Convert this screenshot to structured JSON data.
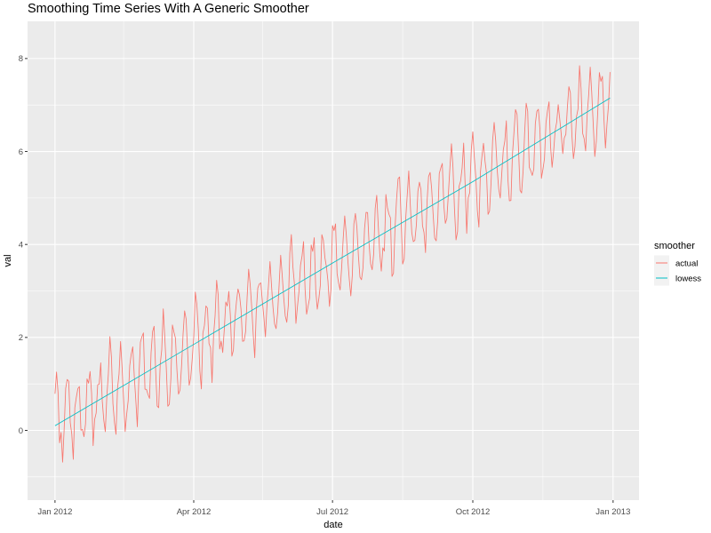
{
  "chart_data": {
    "type": "line",
    "title": "Smoothing Time Series With A Generic Smoother",
    "xlabel": "date",
    "ylabel": "val",
    "x_axis_type": "date",
    "xlim": [
      "2011-12-14",
      "2013-01-18"
    ],
    "ylim": [
      -1.5,
      8.8
    ],
    "x_ticks": [
      {
        "date": "2012-01-01",
        "label": "Jan 2012"
      },
      {
        "date": "2012-04-01",
        "label": "Apr 2012"
      },
      {
        "date": "2012-07-01",
        "label": "Jul 2012"
      },
      {
        "date": "2012-10-01",
        "label": "Oct 2012"
      },
      {
        "date": "2013-01-01",
        "label": "Jan 2013"
      }
    ],
    "x_minor_ticks": [
      "2012-02-15",
      "2012-05-16",
      "2012-08-16",
      "2012-11-16"
    ],
    "y_ticks": [
      0,
      2,
      4,
      6,
      8
    ],
    "y_minor_ticks": [
      -1,
      1,
      3,
      5,
      7
    ],
    "grid": true,
    "background": "#ebebeb",
    "legend": {
      "title": "smoother",
      "placement": "right",
      "entries": [
        "actual",
        "lowess"
      ]
    },
    "series": [
      {
        "name": "actual",
        "color": "#f8766d",
        "generator": {
          "start": "2012-01-01",
          "end": "2012-12-30",
          "step_days": 1,
          "trend_start": 0.1,
          "trend_end": 7.15,
          "weekly_amplitude": 0.8,
          "period_days": 7,
          "noise": 0.35,
          "seed": 7
        }
      },
      {
        "name": "lowess",
        "color": "#00bfc4",
        "points": [
          {
            "x": "2012-01-01",
            "y": 0.1
          },
          {
            "x": "2012-04-01",
            "y": 1.85
          },
          {
            "x": "2012-07-01",
            "y": 3.6
          },
          {
            "x": "2012-10-01",
            "y": 5.35
          },
          {
            "x": "2012-12-30",
            "y": 7.15
          }
        ]
      }
    ]
  }
}
